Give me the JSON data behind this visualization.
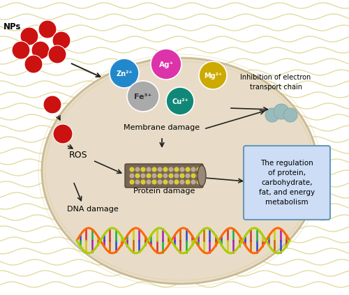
{
  "fig_width": 5.0,
  "fig_height": 4.23,
  "dpi": 100,
  "bg_color": "#ffffff",
  "cell_fill": "#e8dcc8",
  "cell_edge": "#c8b89a",
  "membrane_wave_color": "#d4c870",
  "np_color": "#cc1111",
  "zn_color": "#2288cc",
  "ag_color": "#dd33aa",
  "fe_color": "#aaaaaa",
  "cu_color": "#118877",
  "mg_color": "#ccaa00",
  "ros_color": "#cc1111",
  "arrow_color": "#222222",
  "box_color": "#ccddf5",
  "box_edge": "#6699bb",
  "inhibition_color": "#99bbbb",
  "label_np": "NPs",
  "label_zn": "Zn²⁺",
  "label_ag": "Ag⁺",
  "label_fe": "Fe³⁺",
  "label_cu": "Cu²⁺",
  "label_mg": "Mg²⁺",
  "label_ros": "ROS",
  "label_membrane": "Membrane damage",
  "label_protein": "Protein damage",
  "label_dna": "DNA damage",
  "label_inhibition": "Inhibition of electron\ntransport chain",
  "label_regulation": "The regulation\nof protein,\ncarbohydrate,\nfat, and energy\nmetabolism"
}
